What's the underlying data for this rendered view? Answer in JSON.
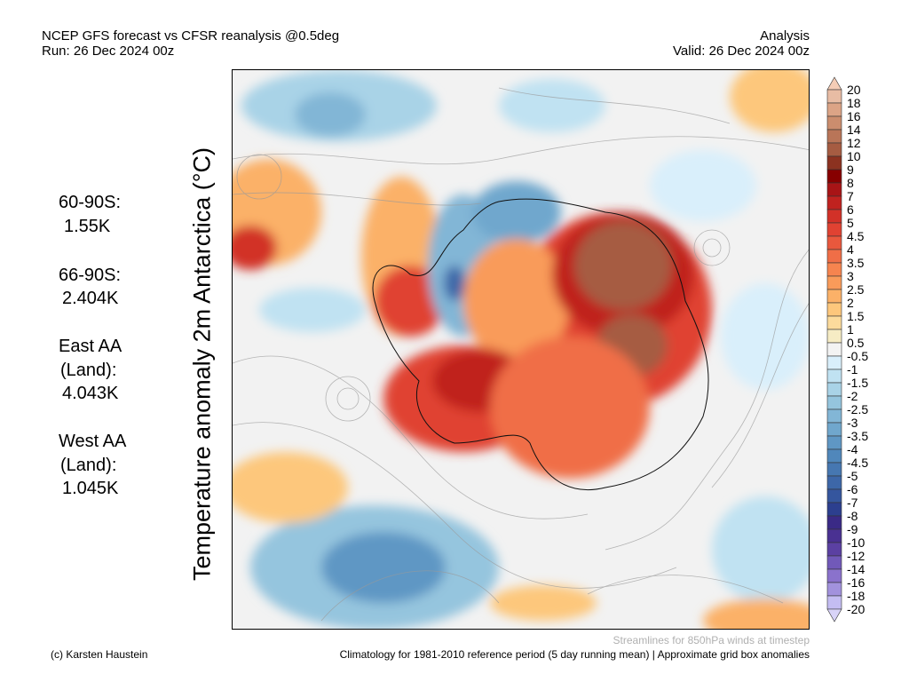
{
  "header": {
    "title": "NCEP GFS forecast vs CFSR reanalysis @0.5deg",
    "run": "Run: 26 Dec 2024 00z",
    "mode": "Analysis",
    "valid": "Valid: 26 Dec 2024 00z"
  },
  "stats": [
    {
      "label": "60-90S:",
      "value": "1.55K"
    },
    {
      "label": "66-90S:",
      "value": "2.404K"
    },
    {
      "label": "East AA",
      "label2": "(Land):",
      "value": "4.043K"
    },
    {
      "label": "West AA",
      "label2": "(Land):",
      "value": "1.045K"
    }
  ],
  "y_label": "Temperature anomaly 2m Antarctica (°C)",
  "colorbar": {
    "labels": [
      "20",
      "18",
      "16",
      "14",
      "12",
      "10",
      "9",
      "8",
      "7",
      "6",
      "5",
      "4.5",
      "4",
      "3.5",
      "3",
      "2.5",
      "2",
      "1.5",
      "1",
      "0.5",
      "-0.5",
      "-1",
      "-1.5",
      "-2",
      "-2.5",
      "-3",
      "-3.5",
      "-4",
      "-4.5",
      "-5",
      "-6",
      "-7",
      "-8",
      "-9",
      "-10",
      "-12",
      "-14",
      "-16",
      "-18",
      "-20"
    ],
    "colors": [
      "#e8bca4",
      "#dca486",
      "#cb8d6e",
      "#b97558",
      "#a65c42",
      "#8c3220",
      "#870000",
      "#a81416",
      "#c0221f",
      "#d23128",
      "#e04232",
      "#e9583d",
      "#f06e47",
      "#f6844f",
      "#f99b5a",
      "#fbb168",
      "#fdc77c",
      "#fcdb9c",
      "#f6ecc4",
      "#f3f3f3",
      "#d9effb",
      "#c0e2f2",
      "#a9d3e7",
      "#95c5de",
      "#82b6d6",
      "#70a7cd",
      "#5f97c4",
      "#5087bb",
      "#4677b1",
      "#3d67a8",
      "#35569e",
      "#2c3f8f",
      "#3a2a86",
      "#4a3192",
      "#5b40a2",
      "#7159b9",
      "#8a72cc",
      "#a292dd",
      "#c4bdf2"
    ],
    "top_arrow_color": "#f5cdb6",
    "bottom_arrow_color": "#d8d3f8"
  },
  "footer": {
    "credit": "(c) Karsten Haustein",
    "streamlines": "Streamlines for 850hPa winds at timestep",
    "climatology": "Climatology for 1981-2010 reference period (5 day running mean) | Approximate grid box anomalies"
  }
}
